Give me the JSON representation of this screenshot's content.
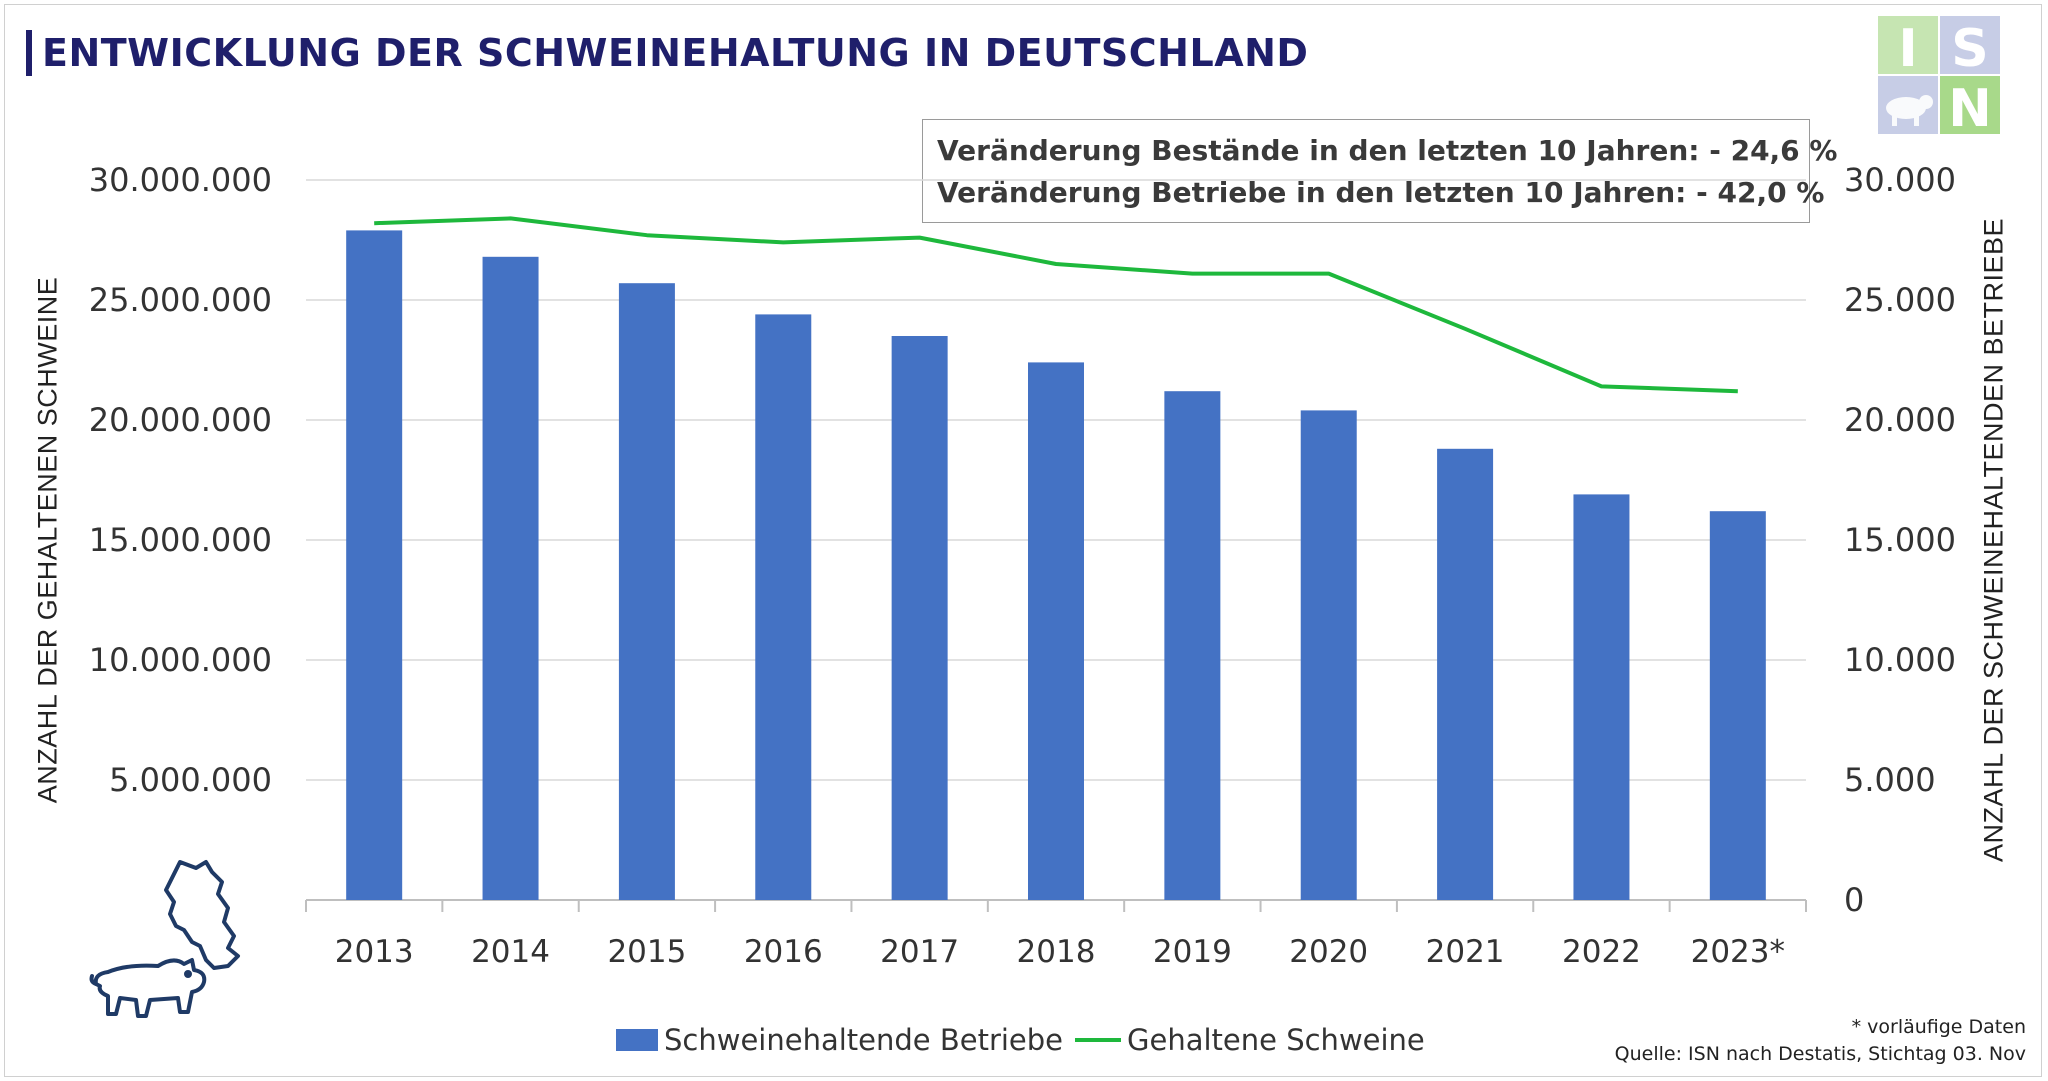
{
  "header": {
    "title": "ENTWICKLUNG DER SCHWEINEHALTUNG IN DEUTSCHLAND"
  },
  "stats": {
    "line1": "Veränderung Bestände in den letzten 10 Jahren: -  24,6 %",
    "line2": "Veränderung Betriebe in den letzten 10 Jahren:   -  42,0 %"
  },
  "logo": {
    "letters": [
      "I",
      "S",
      "N"
    ],
    "colors": [
      "#c6e5b2",
      "#c7cde6",
      "#a8d98a"
    ]
  },
  "footer": {
    "note": "* vorläufige Daten",
    "source": "Quelle: ISN nach Destatis, Stichtag 03. Nov"
  },
  "icons": [
    "pig-with-germany-map-icon",
    "pig-silhouette-icon"
  ],
  "chart_data": {
    "type": "bar",
    "categories": [
      "2013",
      "2014",
      "2015",
      "2016",
      "2017",
      "2018",
      "2019",
      "2020",
      "2021",
      "2022",
      "2023*"
    ],
    "series": [
      {
        "name": "Schweinehaltende Betriebe",
        "type": "bar",
        "axis": "right",
        "color": "#4472c4",
        "values": [
          27900,
          26800,
          25700,
          24400,
          23500,
          22400,
          21200,
          20400,
          18800,
          16900,
          16200
        ]
      },
      {
        "name": "Gehaltene Schweine",
        "type": "line",
        "axis": "left",
        "color": "#1eb83c",
        "values": [
          28200000,
          28400000,
          27700000,
          27400000,
          27600000,
          26500000,
          26100000,
          26100000,
          23800000,
          21400000,
          21200000
        ]
      }
    ],
    "ylabel": "ANZAHL DER GEHALTENEN SCHWEINE",
    "ylabel_right": "ANZAHL DER SCHWEINEHALTENDEN BETRIEBE",
    "ylim": [
      0,
      30000000
    ],
    "ylim_right": [
      0,
      30000
    ],
    "yticks_left": [
      "30.000.000",
      "25.000.000",
      "20.000.000",
      "15.000.000",
      "10.000.000",
      "5.000.000"
    ],
    "yticks_right": [
      "30.000",
      "25.000",
      "20.000",
      "15.000",
      "10.000",
      "5.000",
      "0"
    ],
    "grid": true,
    "legend_position": "bottom"
  }
}
